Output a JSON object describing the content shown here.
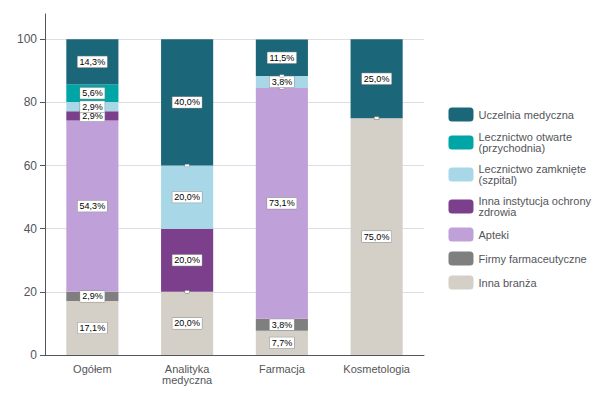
{
  "chart_data": {
    "type": "bar",
    "stacked": true,
    "categories": [
      "Ogółem",
      "Analityka\nmedyczna",
      "Farmacja",
      "Kosmetologia"
    ],
    "series": [
      {
        "name": "Inna branża",
        "color": "#d4d0c8",
        "values": [
          17.1,
          20.0,
          7.7,
          75.0
        ],
        "value_labels": [
          "17,1%",
          "20,0%",
          "7,7%",
          "75,0%"
        ]
      },
      {
        "name": "Firmy farmaceutyczne",
        "color": "#7f7f7f",
        "values": [
          2.9,
          0.0,
          3.8,
          0.0
        ],
        "value_labels": [
          "2,9%",
          null,
          "3,8%",
          null
        ]
      },
      {
        "name": "Apteki",
        "color": "#c0a0d8",
        "values": [
          54.3,
          0.0,
          73.1,
          0.0
        ],
        "value_labels": [
          "54,3%",
          null,
          "73,1%",
          null
        ]
      },
      {
        "name": "Inna instytucja ochrony\nzdrowia",
        "color": "#7b3f8c",
        "values": [
          2.9,
          20.0,
          0.0,
          0.0
        ],
        "value_labels": [
          "2,9%",
          "20,0%",
          null,
          null
        ]
      },
      {
        "name": "Lecznictwo zamknięte\n(szpital)",
        "color": "#a8d8e8",
        "values": [
          2.9,
          20.0,
          3.8,
          0.0
        ],
        "value_labels": [
          "2,9%",
          "20,0%",
          "3,8%",
          null
        ]
      },
      {
        "name": "Lecznictwo otwarte\n(przychodnia)",
        "color": "#00a5a5",
        "values": [
          5.6,
          0.0,
          0.0,
          0.0
        ],
        "value_labels": [
          "5,6%",
          null,
          null,
          null
        ]
      },
      {
        "name": "Uczelnia medyczna",
        "color": "#1b6678",
        "values": [
          14.3,
          40.0,
          11.5,
          25.0
        ],
        "value_labels": [
          "14,3%",
          "40,0%",
          "11,5%",
          "25,0%"
        ]
      }
    ],
    "ylim": [
      0,
      108
    ],
    "yticks": [
      0,
      20,
      40,
      60,
      80,
      100
    ],
    "grid": true,
    "legend": "right",
    "data_labels": true
  }
}
